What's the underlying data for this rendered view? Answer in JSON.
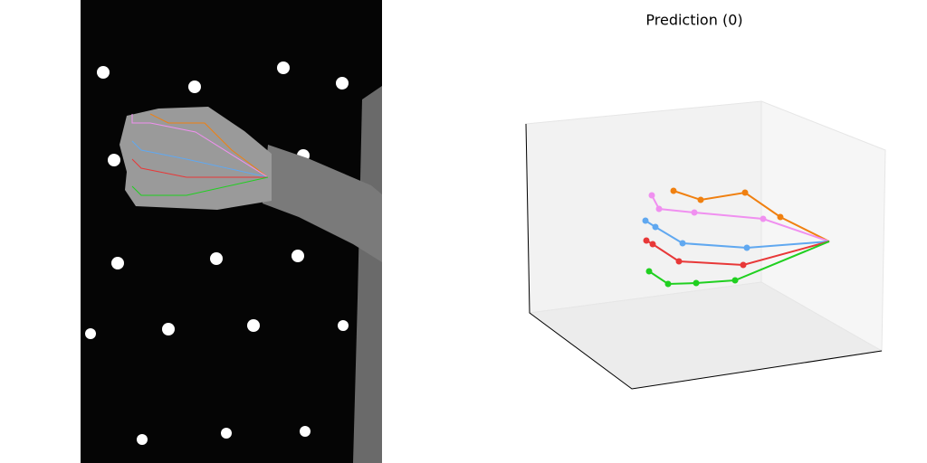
{
  "title": "Prediction (0)"
}
